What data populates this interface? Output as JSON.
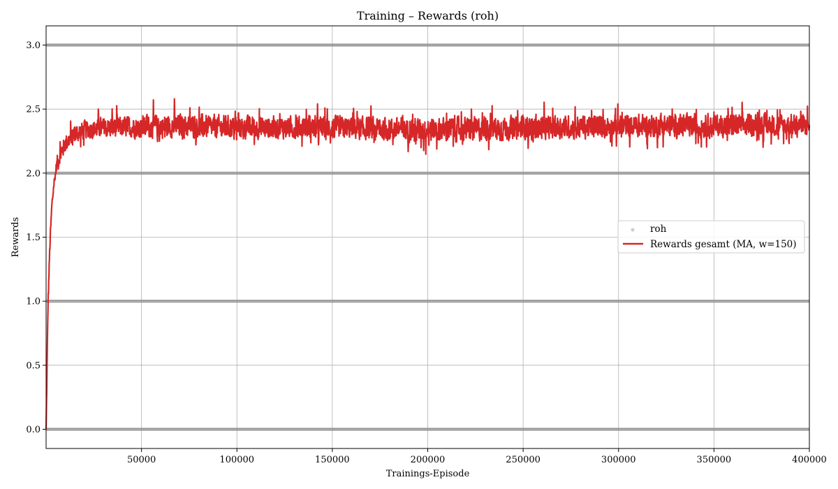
{
  "chart_data": {
    "type": "line",
    "title": "Training – Rewards (roh)",
    "xlabel": "Trainings-Episode",
    "ylabel": "Rewards",
    "xlim": [
      0,
      400000
    ],
    "ylim": [
      -0.15,
      3.15
    ],
    "x_ticks": [
      50000,
      100000,
      150000,
      200000,
      250000,
      300000,
      350000,
      400000
    ],
    "x_tick_labels": [
      "50000",
      "100000",
      "150000",
      "200000",
      "250000",
      "300000",
      "350000",
      "400000"
    ],
    "y_ticks": [
      0.0,
      0.5,
      1.0,
      1.5,
      2.0,
      2.5,
      3.0
    ],
    "y_tick_labels": [
      "0.0",
      "0.5",
      "1.0",
      "1.5",
      "2.0",
      "2.5",
      "3.0"
    ],
    "grid": true,
    "legend": {
      "placement": "center-right",
      "entries": [
        {
          "label": "roh",
          "kind": "scatter",
          "color": "#cccccc"
        },
        {
          "label": "Rewards gesamt (MA, w=150)",
          "kind": "line",
          "color": "#d62728"
        }
      ]
    },
    "raw_reward_levels": [
      0,
      1,
      2,
      3
    ],
    "raw_color": "#808080",
    "series": [
      {
        "name": "Rewards gesamt (MA, w=150)",
        "color": "#d62728",
        "x": [
          0,
          500,
          1000,
          2000,
          3000,
          4000,
          5000,
          6000,
          8000,
          10000,
          15000,
          20000,
          30000,
          50000,
          70000,
          100000,
          150000,
          200000,
          250000,
          300000,
          350000,
          400000
        ],
        "center": [
          0.0,
          0.5,
          1.0,
          1.45,
          1.75,
          1.9,
          2.0,
          2.08,
          2.15,
          2.22,
          2.3,
          2.33,
          2.35,
          2.35,
          2.36,
          2.35,
          2.35,
          2.34,
          2.35,
          2.36,
          2.36,
          2.37
        ],
        "band_low": [
          0.0,
          0.3,
          0.85,
          1.3,
          1.65,
          1.85,
          1.95,
          1.98,
          2.02,
          2.08,
          2.12,
          2.15,
          2.17,
          2.15,
          2.14,
          2.14,
          2.14,
          2.08,
          2.12,
          2.14,
          2.15,
          2.18
        ],
        "band_high": [
          0.0,
          0.7,
          1.15,
          1.6,
          1.85,
          2.05,
          2.18,
          2.3,
          2.42,
          2.45,
          2.5,
          2.55,
          2.58,
          2.62,
          2.65,
          2.6,
          2.6,
          2.58,
          2.6,
          2.62,
          2.63,
          2.6
        ]
      }
    ]
  }
}
